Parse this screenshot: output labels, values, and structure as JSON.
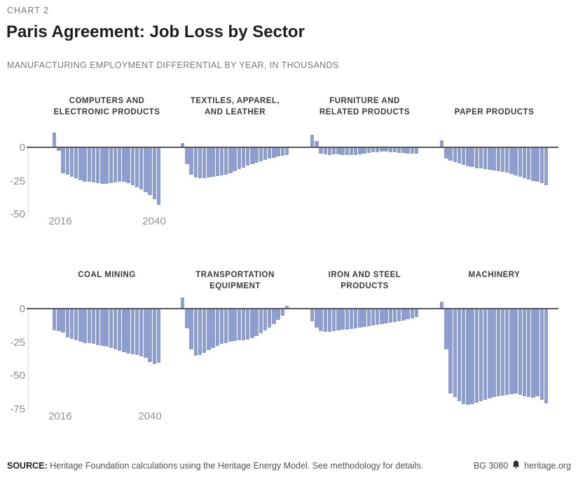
{
  "page": {
    "kicker": "CHART 2",
    "title": "Paris Agreement: Job Loss by Sector",
    "subtitle": "MANUFACTURING EMPLOYMENT DIFFERENTIAL BY YEAR, IN THOUSANDS"
  },
  "chart_data": {
    "type": "bar",
    "title": "Paris Agreement: Job Loss by Sector",
    "subtitle": "Manufacturing employment differential by year, in thousands",
    "x_start": 2016,
    "x_end": 2040,
    "x_tick_labels": [
      "2016",
      "2040"
    ],
    "bar_color": "#8d9ecf",
    "grid": false,
    "legend": "none",
    "rows": [
      {
        "ylim": [
          -50,
          12
        ],
        "yticks": [
          "0",
          "-25",
          "-50"
        ],
        "charts": [
          {
            "key": "computers-electronic-products",
            "title_lines": [
              "COMPUTERS AND",
              "ELECTRONIC PRODUCTS"
            ],
            "values": [
              10.5,
              -2,
              -19,
              -20,
              -21.5,
              -22.5,
              -24,
              -25,
              -25.5,
              -26,
              -26.5,
              -27,
              -27,
              -26.5,
              -26,
              -25.5,
              -25.5,
              -26.5,
              -28,
              -29.5,
              -31,
              -33,
              -35,
              -38.5,
              -42.5
            ]
          },
          {
            "key": "textiles-apparel-leather",
            "title_lines": [
              "TEXTILES, APPAREL,",
              "AND LEATHER"
            ],
            "values": [
              2.5,
              -12,
              -20,
              -22,
              -22.5,
              -22.5,
              -22,
              -21.5,
              -21,
              -20.5,
              -20,
              -19,
              -17.5,
              -16,
              -14.5,
              -13,
              -12,
              -11,
              -10,
              -9,
              -8,
              -7.5,
              -6.5,
              -6,
              -5.5
            ]
          },
          {
            "key": "furniture-related-products",
            "title_lines": [
              "FURNITURE AND",
              "RELATED PRODUCTS"
            ],
            "values": [
              9,
              4,
              -4,
              -4.5,
              -5,
              -4.5,
              -4.5,
              -5,
              -5.5,
              -5,
              -5,
              -4.5,
              -4,
              -3.5,
              -3,
              -3,
              -2.5,
              -2.5,
              -3,
              -3,
              -3.5,
              -3.5,
              -4,
              -4,
              -4
            ]
          },
          {
            "key": "paper-products",
            "title_lines": [
              "PAPER PRODUCTS"
            ],
            "values": [
              5,
              -8,
              -9.5,
              -10.5,
              -11.5,
              -12.5,
              -13.5,
              -14,
              -15,
              -15.5,
              -16,
              -16.5,
              -17,
              -17.5,
              -18,
              -18.5,
              -19.5,
              -20.5,
              -21.5,
              -22.5,
              -23.5,
              -24.5,
              -25.5,
              -26.5,
              -28
            ]
          }
        ]
      },
      {
        "ylim": [
          -75,
          12
        ],
        "yticks": [
          "0",
          "-25",
          "-50",
          "-75"
        ],
        "charts": [
          {
            "key": "coal-mining",
            "title_lines": [
              "COAL MINING"
            ],
            "values": [
              -16,
              -16.5,
              -17.5,
              -21,
              -22,
              -23,
              -24,
              -25,
              -25.5,
              -26,
              -27,
              -27.5,
              -28,
              -29,
              -30,
              -31,
              -32,
              -33,
              -33.5,
              -34,
              -35,
              -36.5,
              -39.5,
              -41,
              -40
            ]
          },
          {
            "key": "transportation-equipment",
            "title_lines": [
              "TRANSPORTATION",
              "EQUIPMENT"
            ],
            "values": [
              8,
              -14,
              -30,
              -34.5,
              -34,
              -32.5,
              -30.5,
              -29,
              -27.5,
              -26,
              -25,
              -24,
              -23.5,
              -23,
              -23,
              -22.5,
              -21.5,
              -20,
              -18,
              -16,
              -13.5,
              -11,
              -8,
              -4.5,
              1.5
            ]
          },
          {
            "key": "iron-steel-products",
            "title_lines": [
              "IRON AND STEEL",
              "PRODUCTS"
            ],
            "values": [
              -9,
              -13.5,
              -16.5,
              -17,
              -17,
              -16.5,
              -16,
              -15.5,
              -15,
              -14.5,
              -14,
              -13.5,
              -13,
              -12.5,
              -12,
              -11.5,
              -11,
              -10.5,
              -10,
              -9.5,
              -9,
              -8.5,
              -7.5,
              -7,
              -6
            ]
          },
          {
            "key": "machinery",
            "title_lines": [
              "MACHINERY"
            ],
            "values": [
              5,
              -30,
              -63,
              -66,
              -69,
              -71,
              -71.5,
              -71,
              -70,
              -69,
              -68,
              -67,
              -66,
              -65,
              -64.5,
              -64,
              -63.5,
              -63,
              -64,
              -65.5,
              -66,
              -66.5,
              -65.5,
              -68,
              -70.5
            ]
          }
        ]
      }
    ]
  },
  "footer": {
    "source_label": "SOURCE:",
    "source_text": "Heritage Foundation calculations using the Heritage Energy Model. See methodology for details.",
    "report_id": "BG 3080",
    "site": "heritage.org"
  }
}
